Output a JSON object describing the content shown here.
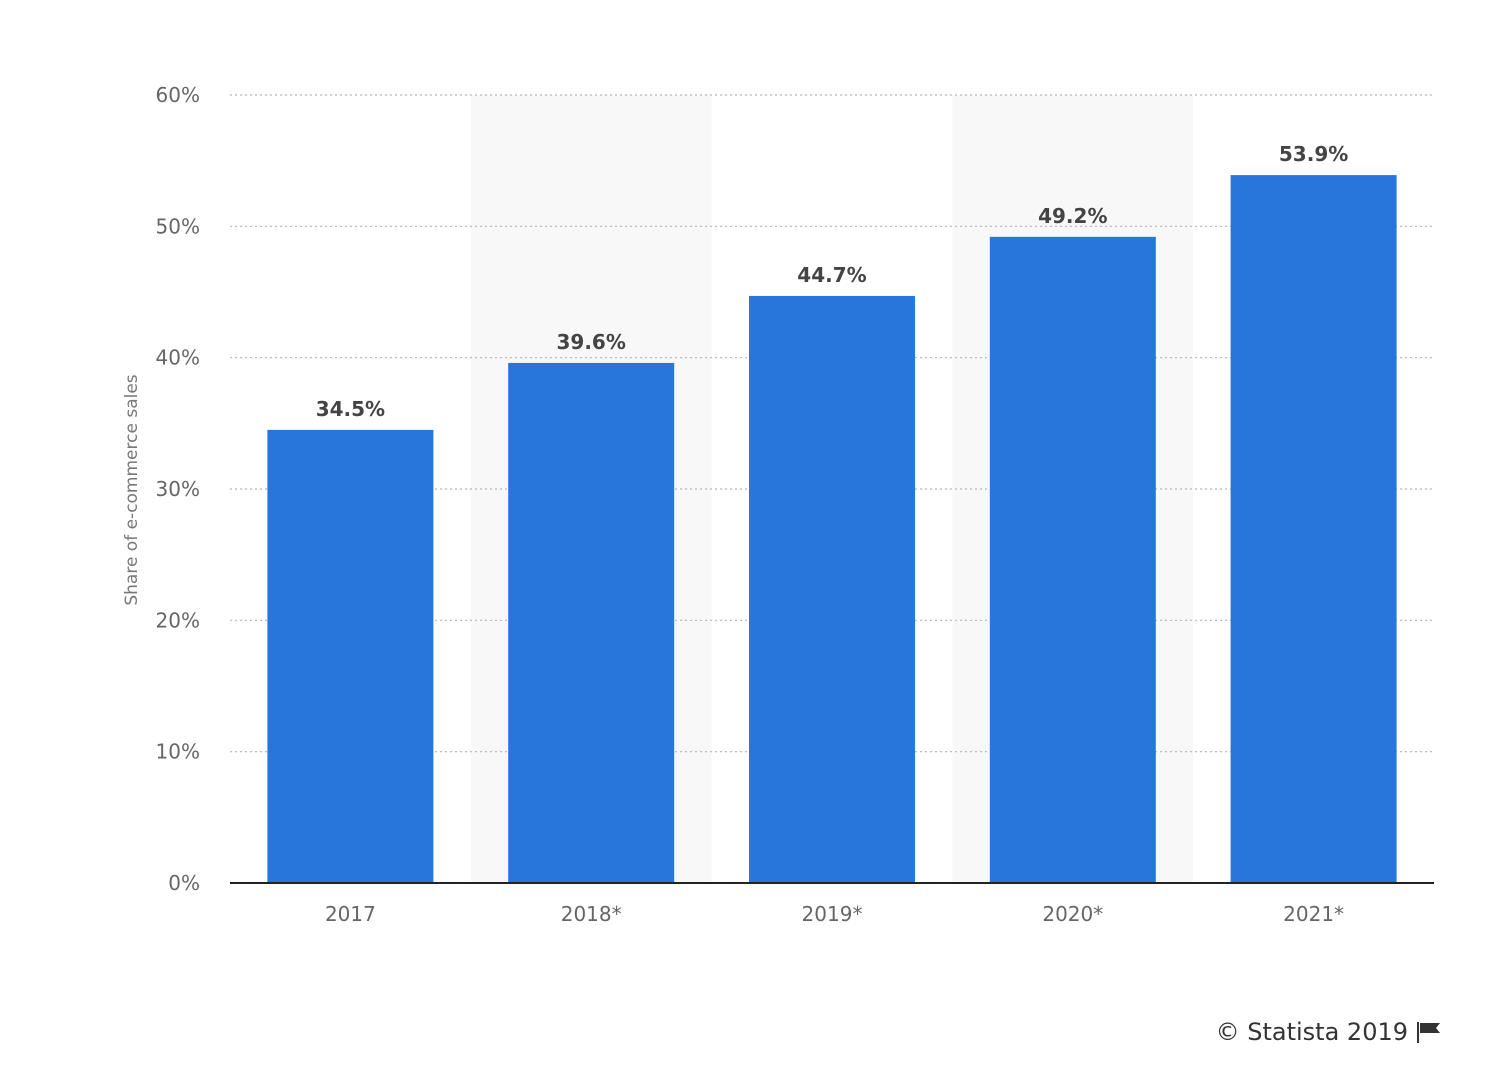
{
  "chart_data": {
    "type": "bar",
    "categories": [
      "2017",
      "2018*",
      "2019*",
      "2020*",
      "2021*"
    ],
    "values": [
      34.5,
      39.6,
      44.7,
      49.2,
      53.9
    ],
    "data_labels": [
      "34.5%",
      "39.6%",
      "44.7%",
      "49.2%",
      "53.9%"
    ],
    "title": "",
    "xlabel": "",
    "ylabel": "Share of e-commerce sales",
    "ylim": [
      0,
      60
    ],
    "yticks": [
      0,
      10,
      20,
      30,
      40,
      50,
      60
    ],
    "ytick_labels": [
      "0%",
      "10%",
      "20%",
      "30%",
      "40%",
      "50%",
      "60%"
    ],
    "grid": true,
    "bar_color": "#2875dc",
    "alt_band_color": "#f8f8f8"
  },
  "credit": {
    "text": "© Statista 2019",
    "icon": "flag-icon"
  }
}
